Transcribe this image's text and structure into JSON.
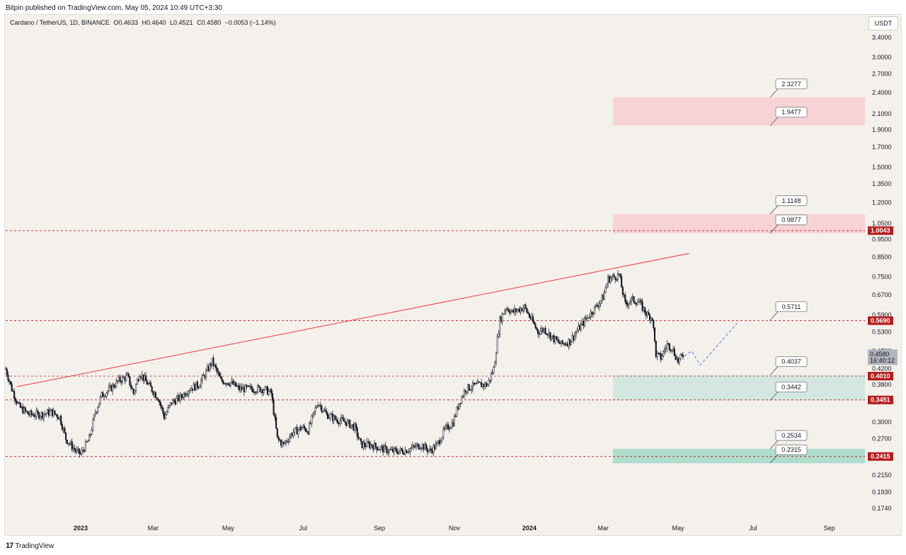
{
  "header": {
    "publisher_line": "Bitpin published on TradingView.com, May 05, 2024 10:49 UTC+3:30"
  },
  "symbol": {
    "name": "Cardano / TetherUS, 1D, BINANCE",
    "open": "O0.4633",
    "high": "H0.4640",
    "low": "L0.4521",
    "close": "C0.4580",
    "change": "−0.0053 (−1.14%)"
  },
  "currency": "USDT",
  "footer": {
    "logo_text": "TradingView",
    "logo_mark": "17"
  },
  "colors": {
    "candle": "#131722",
    "trendline": "#f23645",
    "level_line": "#b71c1c",
    "red_zone": "#f7cfd4",
    "green_zone": "#cfe6df",
    "green_zone_dark": "#a8dccb",
    "badge_red": "#b71c1c",
    "projection": "#5b7bd5",
    "price_badge": "#b2b5be"
  },
  "chart_data": {
    "type": "candlestick",
    "scale": "log",
    "ylim": [
      0.16,
      3.6
    ],
    "x_range": [
      "2022-11-01",
      "2024-09-30"
    ],
    "y_ticks": [
      "3.4000",
      "3.0000",
      "2.7000",
      "2.4000",
      "2.1000",
      "1.9000",
      "1.7000",
      "1.5000",
      "1.3500",
      "1.2000",
      "1.0500",
      "0.9500",
      "0.8500",
      "0.7500",
      "0.6700",
      "0.5900",
      "0.5300",
      "0.4700",
      "0.4200",
      "0.3800",
      "0.3400",
      "0.3000",
      "0.2700",
      "0.2400",
      "0.2150",
      "0.1930",
      "0.1740"
    ],
    "x_ticks": [
      {
        "label": "2023",
        "date": "2023-01-01",
        "bold": true
      },
      {
        "label": "Mar",
        "date": "2023-03-01"
      },
      {
        "label": "May",
        "date": "2023-05-01"
      },
      {
        "label": "Jul",
        "date": "2023-07-01"
      },
      {
        "label": "Sep",
        "date": "2023-09-01"
      },
      {
        "label": "Nov",
        "date": "2023-11-01"
      },
      {
        "label": "2024",
        "date": "2024-01-01",
        "bold": true
      },
      {
        "label": "Mar",
        "date": "2024-03-01"
      },
      {
        "label": "May",
        "date": "2024-05-01"
      },
      {
        "label": "Jul",
        "date": "2024-07-01"
      },
      {
        "label": "Sep",
        "date": "2024-09-01"
      }
    ],
    "price_path": [
      [
        "2022-11-01",
        0.42
      ],
      [
        "2022-11-06",
        0.37
      ],
      [
        "2022-11-12",
        0.33
      ],
      [
        "2022-11-20",
        0.315
      ],
      [
        "2022-11-30",
        0.315
      ],
      [
        "2022-12-08",
        0.32
      ],
      [
        "2022-12-15",
        0.31
      ],
      [
        "2022-12-20",
        0.27
      ],
      [
        "2022-12-28",
        0.25
      ],
      [
        "2023-01-01",
        0.245
      ],
      [
        "2023-01-08",
        0.27
      ],
      [
        "2023-01-13",
        0.32
      ],
      [
        "2023-01-18",
        0.355
      ],
      [
        "2023-01-25",
        0.37
      ],
      [
        "2023-02-01",
        0.39
      ],
      [
        "2023-02-08",
        0.4
      ],
      [
        "2023-02-13",
        0.36
      ],
      [
        "2023-02-18",
        0.41
      ],
      [
        "2023-02-25",
        0.38
      ],
      [
        "2023-03-05",
        0.35
      ],
      [
        "2023-03-10",
        0.31
      ],
      [
        "2023-03-16",
        0.34
      ],
      [
        "2023-03-23",
        0.35
      ],
      [
        "2023-03-30",
        0.37
      ],
      [
        "2023-04-07",
        0.38
      ],
      [
        "2023-04-13",
        0.41
      ],
      [
        "2023-04-18",
        0.44
      ],
      [
        "2023-04-25",
        0.39
      ],
      [
        "2023-05-03",
        0.385
      ],
      [
        "2023-05-10",
        0.37
      ],
      [
        "2023-05-20",
        0.37
      ],
      [
        "2023-05-30",
        0.37
      ],
      [
        "2023-06-05",
        0.36
      ],
      [
        "2023-06-10",
        0.27
      ],
      [
        "2023-06-15",
        0.26
      ],
      [
        "2023-06-22",
        0.28
      ],
      [
        "2023-06-30",
        0.29
      ],
      [
        "2023-07-05",
        0.285
      ],
      [
        "2023-07-13",
        0.34
      ],
      [
        "2023-07-20",
        0.315
      ],
      [
        "2023-07-28",
        0.305
      ],
      [
        "2023-08-05",
        0.3
      ],
      [
        "2023-08-12",
        0.29
      ],
      [
        "2023-08-17",
        0.26
      ],
      [
        "2023-08-25",
        0.26
      ],
      [
        "2023-09-01",
        0.255
      ],
      [
        "2023-09-10",
        0.25
      ],
      [
        "2023-09-20",
        0.25
      ],
      [
        "2023-09-28",
        0.255
      ],
      [
        "2023-10-05",
        0.26
      ],
      [
        "2023-10-12",
        0.25
      ],
      [
        "2023-10-18",
        0.26
      ],
      [
        "2023-10-24",
        0.285
      ],
      [
        "2023-10-31",
        0.3
      ],
      [
        "2023-11-05",
        0.34
      ],
      [
        "2023-11-10",
        0.37
      ],
      [
        "2023-11-15",
        0.375
      ],
      [
        "2023-11-22",
        0.38
      ],
      [
        "2023-11-28",
        0.38
      ],
      [
        "2023-12-03",
        0.42
      ],
      [
        "2023-12-08",
        0.57
      ],
      [
        "2023-12-13",
        0.62
      ],
      [
        "2023-12-18",
        0.6
      ],
      [
        "2023-12-23",
        0.61
      ],
      [
        "2023-12-28",
        0.62
      ],
      [
        "2024-01-03",
        0.57
      ],
      [
        "2024-01-08",
        0.53
      ],
      [
        "2024-01-13",
        0.54
      ],
      [
        "2024-01-20",
        0.51
      ],
      [
        "2024-01-27",
        0.49
      ],
      [
        "2024-02-03",
        0.5
      ],
      [
        "2024-02-10",
        0.54
      ],
      [
        "2024-02-17",
        0.58
      ],
      [
        "2024-02-24",
        0.62
      ],
      [
        "2024-03-01",
        0.66
      ],
      [
        "2024-03-05",
        0.74
      ],
      [
        "2024-03-10",
        0.75
      ],
      [
        "2024-03-14",
        0.76
      ],
      [
        "2024-03-19",
        0.63
      ],
      [
        "2024-03-24",
        0.65
      ],
      [
        "2024-03-30",
        0.64
      ],
      [
        "2024-04-06",
        0.59
      ],
      [
        "2024-04-10",
        0.58
      ],
      [
        "2024-04-13",
        0.46
      ],
      [
        "2024-04-17",
        0.45
      ],
      [
        "2024-04-22",
        0.49
      ],
      [
        "2024-04-26",
        0.48
      ],
      [
        "2024-05-01",
        0.44
      ],
      [
        "2024-05-05",
        0.458
      ]
    ],
    "trendline": [
      [
        "2022-11-10",
        0.375
      ],
      [
        "2024-05-10",
        0.87
      ]
    ],
    "projection": [
      [
        "2024-05-06",
        0.455
      ],
      [
        "2024-05-12",
        0.47
      ],
      [
        "2024-05-19",
        0.43
      ],
      [
        "2024-06-18",
        0.56
      ]
    ],
    "zones": [
      {
        "type": "supply",
        "from": 1.9477,
        "to": 2.3277,
        "start": "2024-03-09"
      },
      {
        "type": "supply",
        "from": 0.9877,
        "to": 1.1148,
        "start": "2024-03-09"
      },
      {
        "type": "demand",
        "from": 0.3442,
        "to": 0.4037,
        "start": "2024-03-09"
      },
      {
        "type": "demand",
        "from": 0.2315,
        "to": 0.2534,
        "start": "2024-03-09"
      }
    ],
    "levels": [
      {
        "value": 1.0043,
        "label": "1.0043"
      },
      {
        "value": 0.569,
        "label": "0.5690"
      },
      {
        "value": 0.401,
        "label": "0.4010"
      },
      {
        "value": 0.3451,
        "label": "0.3451"
      },
      {
        "value": 0.2415,
        "label": "0.2415"
      }
    ],
    "callouts": [
      {
        "label": "2.3277",
        "value": 2.3277
      },
      {
        "label": "1.9477",
        "value": 1.9477
      },
      {
        "label": "1.1148",
        "value": 1.1148
      },
      {
        "label": "0.9877",
        "value": 0.9877
      },
      {
        "label": "0.5711",
        "value": 0.5711
      },
      {
        "label": "0.4037",
        "value": 0.4037
      },
      {
        "label": "0.3442",
        "value": 0.3442
      },
      {
        "label": "0.2534",
        "value": 0.2534
      },
      {
        "label": "0.2315",
        "value": 0.2315
      }
    ],
    "current_price": {
      "value": 0.458,
      "label": "0.4580",
      "countdown": "16:40:12"
    }
  }
}
